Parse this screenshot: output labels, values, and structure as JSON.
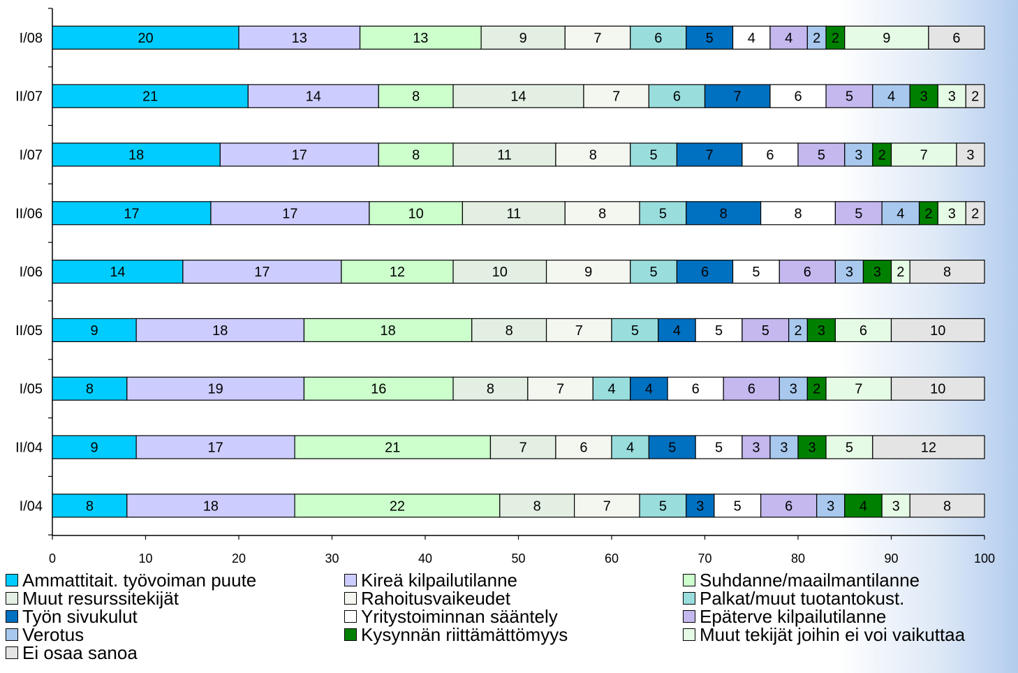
{
  "chart_data": {
    "type": "bar",
    "orientation": "horizontal",
    "stacked": true,
    "categories": [
      "I/08",
      "II/07",
      "I/07",
      "II/06",
      "I/06",
      "II/05",
      "I/05",
      "II/04",
      "I/04"
    ],
    "xlim": [
      0,
      100
    ],
    "xticks": [
      0,
      10,
      20,
      30,
      40,
      50,
      60,
      70,
      80,
      90,
      100
    ],
    "legend_position": "bottom",
    "series": [
      {
        "name": "Ammattitait. työvoiman puute",
        "color": "#00ccff",
        "values": [
          20,
          21,
          18,
          17,
          14,
          9,
          8,
          9,
          8
        ]
      },
      {
        "name": "Kireä kilpailutilanne",
        "color": "#ccccff",
        "values": [
          13,
          14,
          17,
          17,
          17,
          18,
          19,
          17,
          18
        ]
      },
      {
        "name": "Suhdanne/maailmantilanne",
        "color": "#ccffcc",
        "values": [
          13,
          8,
          8,
          10,
          12,
          18,
          16,
          21,
          22
        ]
      },
      {
        "name": "Muut resurssitekijät",
        "color": "#e3efe3",
        "values": [
          9,
          14,
          11,
          11,
          10,
          8,
          8,
          7,
          8
        ]
      },
      {
        "name": "Rahoitusvaikeudet",
        "color": "#f4f6f0",
        "values": [
          7,
          7,
          8,
          8,
          9,
          7,
          7,
          6,
          7
        ]
      },
      {
        "name": "Palkat/muut tuotantokust.",
        "color": "#99dddd",
        "values": [
          6,
          6,
          5,
          5,
          5,
          5,
          4,
          4,
          5
        ]
      },
      {
        "name": "Työn sivukulut",
        "color": "#0070c0",
        "values": [
          5,
          7,
          7,
          8,
          6,
          4,
          4,
          5,
          3
        ]
      },
      {
        "name": "Yritystoiminnan sääntely",
        "color": "#ffffff",
        "values": [
          4,
          6,
          6,
          8,
          5,
          5,
          6,
          5,
          5
        ]
      },
      {
        "name": "Epäterve kilpailutilanne",
        "color": "#c4b8ee",
        "values": [
          4,
          5,
          5,
          5,
          6,
          5,
          6,
          3,
          6
        ]
      },
      {
        "name": "Verotus",
        "color": "#a8c8ee",
        "values": [
          2,
          4,
          3,
          4,
          3,
          2,
          3,
          3,
          3
        ]
      },
      {
        "name": "Kysynnän riittämättömyys",
        "color": "#008000",
        "values": [
          2,
          3,
          2,
          2,
          3,
          3,
          2,
          3,
          4
        ]
      },
      {
        "name": "Muut tekijät joihin ei voi vaikuttaa",
        "color": "#e6fbe6",
        "values": [
          9,
          3,
          7,
          3,
          2,
          6,
          7,
          5,
          3
        ]
      },
      {
        "name": "Ei osaa sanoa",
        "color": "#e4e4e4",
        "values": [
          6,
          2,
          3,
          2,
          8,
          10,
          10,
          12,
          8
        ]
      }
    ]
  }
}
